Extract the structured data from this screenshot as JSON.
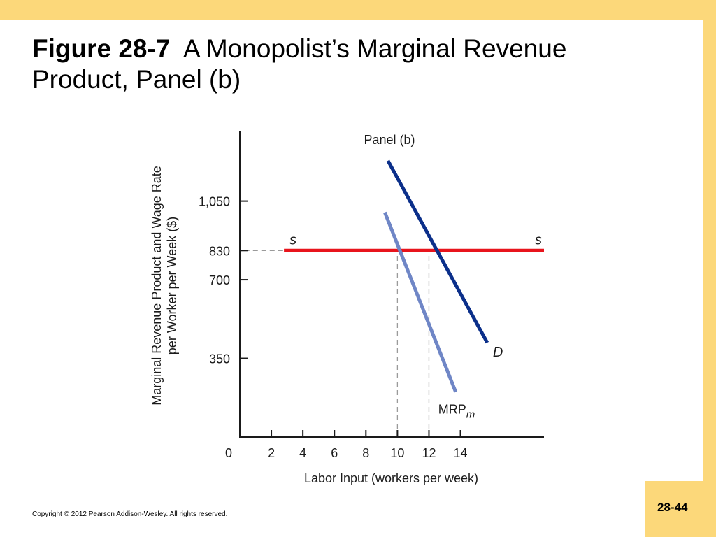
{
  "slide": {
    "title_bold": "Figure 28-7",
    "title_rest": "A Monopolist’s Marginal Revenue Product, Panel (b)",
    "copyright": "Copyright © 2012 Pearson Addison-Wesley. All rights reserved.",
    "page_number": "28-44"
  },
  "colors": {
    "background_frame": "#fcd87a",
    "supply_line": "#e8141c",
    "demand_line": "#0b2f8a",
    "mrp_line": "#6f86c6"
  },
  "chart_data": {
    "type": "line",
    "title": "Panel (b)",
    "xlabel": "Labor Input (workers per week)",
    "ylabel": "Marginal Revenue Product and Wage Rate per Worker per Week ($)",
    "x_ticks": [
      0,
      2,
      4,
      6,
      8,
      10,
      12,
      14
    ],
    "y_ticks": [
      350,
      700,
      830,
      1050
    ],
    "y_tick_labels": [
      "350",
      "700",
      "830",
      "1,050"
    ],
    "xlim": [
      0,
      19.3
    ],
    "ylim": [
      0,
      1360
    ],
    "series": [
      {
        "name": "s",
        "label": "s",
        "x": [
          2.8,
          19.3
        ],
        "y": [
          830,
          830
        ]
      },
      {
        "name": "D",
        "label": "D",
        "x": [
          9.4,
          15.7
        ],
        "y": [
          1230,
          420
        ]
      },
      {
        "name": "MRPm",
        "label": "MRP",
        "label_sub": "m",
        "x": [
          9.2,
          13.7
        ],
        "y": [
          1000,
          200
        ]
      }
    ],
    "reference_lines": [
      {
        "type": "horizontal",
        "y": 830,
        "x_from": 0.3,
        "x_to": 2.8
      },
      {
        "type": "vertical",
        "x": 10,
        "y_from": 0,
        "y_to": 830
      },
      {
        "type": "vertical",
        "x": 12,
        "y_from": 0,
        "y_to": 830
      }
    ],
    "grid": false,
    "legend": "none"
  }
}
